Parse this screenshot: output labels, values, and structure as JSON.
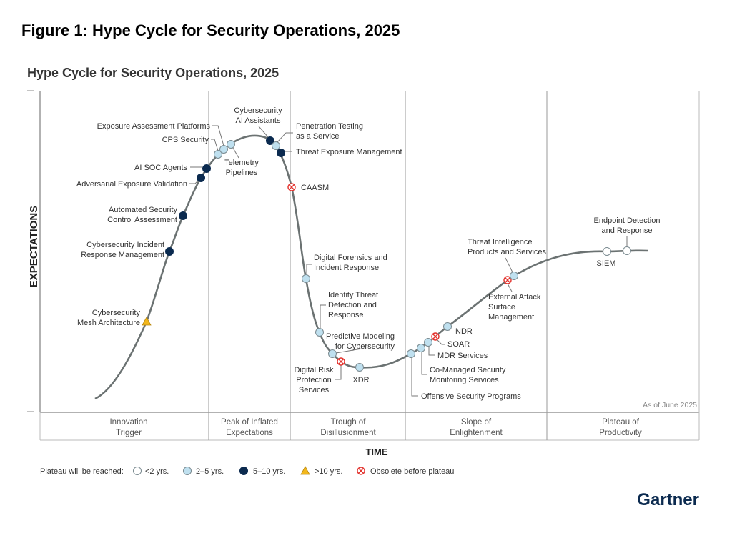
{
  "figure_title": "Figure 1: Hype Cycle for Security Operations, 2025",
  "chart_title": "Hype Cycle for Security Operations, 2025",
  "y_axis_label": "EXPECTATIONS",
  "x_axis_label": "TIME",
  "as_of": "As of June 2025",
  "phases": [
    {
      "lines": [
        "Innovation",
        "Trigger"
      ]
    },
    {
      "lines": [
        "Peak of Inflated",
        "Expectations"
      ]
    },
    {
      "lines": [
        "Trough of",
        "Disillusionment"
      ]
    },
    {
      "lines": [
        "Slope of",
        "Enlightenment"
      ]
    },
    {
      "lines": [
        "Plateau of",
        "Productivity"
      ]
    }
  ],
  "legend": {
    "title": "Plateau will be reached:",
    "items": [
      {
        "key": "lt2",
        "label": "<2 yrs.",
        "color": "#ffffff"
      },
      {
        "key": "2to5",
        "label": "2–5 yrs.",
        "color": "#bfe0ef"
      },
      {
        "key": "5to10",
        "label": "5–10 yrs.",
        "color": "#0b2a4f"
      },
      {
        "key": "gt10",
        "label": ">10 yrs.",
        "color": "#f2b71c"
      },
      {
        "key": "obsolete",
        "label": "Obsolete before plateau",
        "color": "#e3342f"
      }
    ]
  },
  "technologies": [
    {
      "name": "Cybersecurity Mesh Architecture",
      "lines": [
        "Cybersecurity",
        "Mesh Architecture"
      ],
      "plateau": "gt10"
    },
    {
      "name": "Cybersecurity Incident Response Management",
      "lines": [
        "Cybersecurity Incident",
        "Response Management"
      ],
      "plateau": "5to10"
    },
    {
      "name": "Automated Security Control Assessment",
      "lines": [
        "Automated Security",
        "Control Assessment"
      ],
      "plateau": "5to10"
    },
    {
      "name": "Adversarial Exposure Validation",
      "lines": [
        "Adversarial Exposure Validation"
      ],
      "plateau": "5to10"
    },
    {
      "name": "AI SOC Agents",
      "lines": [
        "AI SOC Agents"
      ],
      "plateau": "5to10"
    },
    {
      "name": "CPS Security",
      "lines": [
        "CPS Security"
      ],
      "plateau": "2to5"
    },
    {
      "name": "Exposure Assessment Platforms",
      "lines": [
        "Exposure Assessment Platforms"
      ],
      "plateau": "2to5"
    },
    {
      "name": "Telemetry Pipelines",
      "lines": [
        "Telemetry",
        "Pipelines"
      ],
      "plateau": "2to5"
    },
    {
      "name": "Cybersecurity AI Assistants",
      "lines": [
        "Cybersecurity",
        "AI Assistants"
      ],
      "plateau": "5to10"
    },
    {
      "name": "Penetration Testing as a Service",
      "lines": [
        "Penetration Testing",
        "as a Service"
      ],
      "plateau": "2to5"
    },
    {
      "name": "Threat Exposure Management",
      "lines": [
        "Threat Exposure Management"
      ],
      "plateau": "5to10"
    },
    {
      "name": "CAASM",
      "lines": [
        "CAASM"
      ],
      "plateau": "obsolete"
    },
    {
      "name": "Digital Forensics and Incident Response",
      "lines": [
        "Digital Forensics and",
        "Incident Response"
      ],
      "plateau": "2to5"
    },
    {
      "name": "Identity Threat Detection and Response",
      "lines": [
        "Identity Threat",
        "Detection and",
        "Response"
      ],
      "plateau": "2to5"
    },
    {
      "name": "Predictive Modeling for Cybersecurity",
      "lines": [
        "Predictive Modeling",
        "for Cybersecurity"
      ],
      "plateau": "2to5"
    },
    {
      "name": "Digital Risk Protection Services",
      "lines": [
        "Digital Risk",
        "Protection",
        "Services"
      ],
      "plateau": "obsolete"
    },
    {
      "name": "XDR",
      "lines": [
        "XDR"
      ],
      "plateau": "2to5"
    },
    {
      "name": "Offensive Security Programs",
      "lines": [
        "Offensive Security Programs"
      ],
      "plateau": "2to5"
    },
    {
      "name": "Co-Managed Security Monitoring Services",
      "lines": [
        "Co-Managed Security",
        "Monitoring Services"
      ],
      "plateau": "2to5"
    },
    {
      "name": "MDR Services",
      "lines": [
        "MDR Services"
      ],
      "plateau": "2to5"
    },
    {
      "name": "SOAR",
      "lines": [
        "SOAR"
      ],
      "plateau": "obsolete"
    },
    {
      "name": "NDR",
      "lines": [
        "NDR"
      ],
      "plateau": "2to5"
    },
    {
      "name": "External Attack Surface Management",
      "lines": [
        "External Attack",
        "Surface",
        "Management"
      ],
      "plateau": "obsolete"
    },
    {
      "name": "Threat Intelligence Products and Services",
      "lines": [
        "Threat Intelligence",
        "Products and Services"
      ],
      "plateau": "2to5"
    },
    {
      "name": "SIEM",
      "lines": [
        "SIEM"
      ],
      "plateau": "lt2"
    },
    {
      "name": "Endpoint Detection and Response",
      "lines": [
        "Endpoint Detection",
        "and Response"
      ],
      "plateau": "lt2"
    }
  ],
  "logo": "Gartner"
}
